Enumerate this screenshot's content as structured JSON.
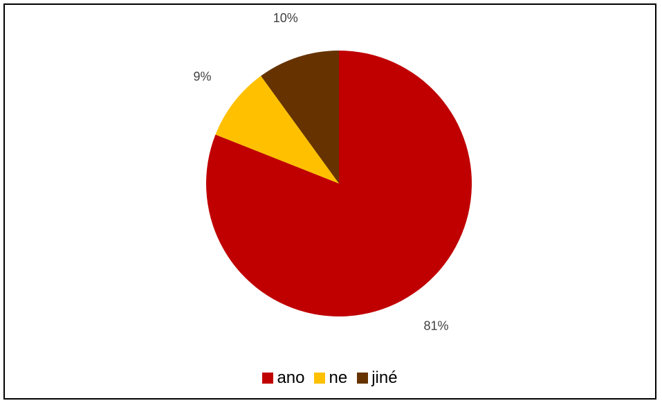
{
  "chart_data": {
    "type": "pie",
    "categories": [
      "ano",
      "ne",
      "jiné"
    ],
    "values": [
      81,
      9,
      10
    ],
    "data_labels": [
      "81%",
      "9%",
      "10%"
    ],
    "colors": [
      "#C00000",
      "#FFC000",
      "#663300"
    ],
    "title": "",
    "legend_position": "bottom",
    "start_angle_deg": 0,
    "direction": "clockwise"
  },
  "legend": {
    "items": [
      {
        "label": "ano",
        "color": "#C00000"
      },
      {
        "label": "ne",
        "color": "#FFC000"
      },
      {
        "label": "jiné",
        "color": "#663300"
      }
    ]
  }
}
